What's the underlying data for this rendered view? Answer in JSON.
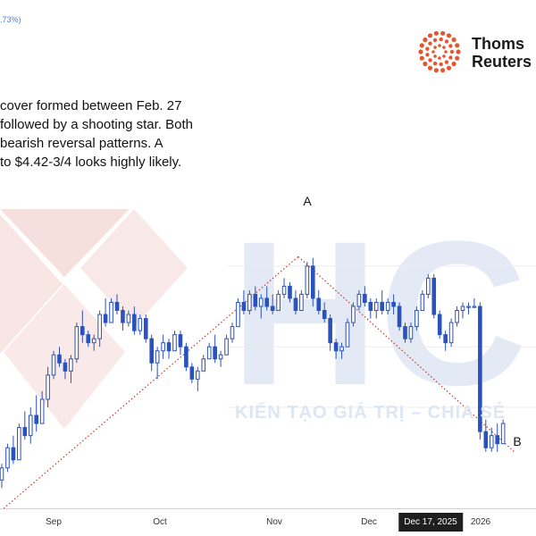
{
  "header_note": ".73%)",
  "annotation_lines": [
    "cover formed between Feb. 27",
    "followed by a shooting star. Both",
    "bearish reversal patterns. A",
    "to $4.42-3/4 looks highly likely."
  ],
  "logo": {
    "line1": "Thoms",
    "line2": "Reuters",
    "color": "#e4572e"
  },
  "watermark": {
    "letters": "HC",
    "tagline": "KIẾN TẠO GIÁ TRỊ – CHIA SẺ",
    "letter_color": "#e3eaf5",
    "arrow_color": "#f3d6d3"
  },
  "colors": {
    "candle": "#2a52be",
    "trend": "#c0392b"
  },
  "chart_data": {
    "type": "candlestick",
    "x_axis_labels": [
      "Sep",
      "Oct",
      "Nov",
      "Dec",
      "Dec 17, 2025",
      "2026"
    ],
    "highlighted_label": "Dec 17, 2025",
    "points": [
      {
        "label": "A"
      },
      {
        "label": "B"
      }
    ],
    "candles": [
      [
        4.52,
        4.56,
        4.5,
        4.55
      ],
      [
        4.55,
        4.61,
        4.54,
        4.6
      ],
      [
        4.6,
        4.63,
        4.56,
        4.57
      ],
      [
        4.57,
        4.66,
        4.57,
        4.65
      ],
      [
        4.65,
        4.69,
        4.62,
        4.63
      ],
      [
        4.63,
        4.7,
        4.61,
        4.68
      ],
      [
        4.68,
        4.73,
        4.64,
        4.66
      ],
      [
        4.66,
        4.74,
        4.66,
        4.72
      ],
      [
        4.72,
        4.8,
        4.7,
        4.78
      ],
      [
        4.78,
        4.84,
        4.77,
        4.83
      ],
      [
        4.83,
        4.85,
        4.8,
        4.81
      ],
      [
        4.81,
        4.82,
        4.77,
        4.79
      ],
      [
        4.79,
        4.83,
        4.76,
        4.82
      ],
      [
        4.82,
        4.91,
        4.81,
        4.9
      ],
      [
        4.9,
        4.94,
        4.86,
        4.88
      ],
      [
        4.88,
        4.89,
        4.85,
        4.86
      ],
      [
        4.86,
        4.88,
        4.84,
        4.87
      ],
      [
        4.87,
        4.94,
        4.85,
        4.93
      ],
      [
        4.93,
        4.97,
        4.9,
        4.91
      ],
      [
        4.91,
        4.97,
        4.91,
        4.96
      ],
      [
        4.96,
        4.98,
        4.93,
        4.94
      ],
      [
        4.94,
        4.95,
        4.89,
        4.91
      ],
      [
        4.91,
        4.94,
        4.9,
        4.93
      ],
      [
        4.93,
        4.95,
        4.88,
        4.89
      ],
      [
        4.89,
        4.93,
        4.88,
        4.92
      ],
      [
        4.92,
        4.93,
        4.86,
        4.87
      ],
      [
        4.87,
        4.88,
        4.79,
        4.81
      ],
      [
        4.81,
        4.85,
        4.77,
        4.84
      ],
      [
        4.84,
        4.88,
        4.82,
        4.86
      ],
      [
        4.86,
        4.87,
        4.82,
        4.84
      ],
      [
        4.84,
        4.89,
        4.84,
        4.88
      ],
      [
        4.88,
        4.89,
        4.83,
        4.85
      ],
      [
        4.85,
        4.86,
        4.79,
        4.8
      ],
      [
        4.8,
        4.81,
        4.76,
        4.77
      ],
      [
        4.77,
        4.8,
        4.74,
        4.79
      ],
      [
        4.79,
        4.83,
        4.79,
        4.82
      ],
      [
        4.82,
        4.86,
        4.82,
        4.85
      ],
      [
        4.85,
        4.88,
        4.81,
        4.82
      ],
      [
        4.82,
        4.84,
        4.8,
        4.83
      ],
      [
        4.83,
        4.88,
        4.83,
        4.87
      ],
      [
        4.87,
        4.91,
        4.86,
        4.9
      ],
      [
        4.9,
        4.97,
        4.9,
        4.96
      ],
      [
        4.96,
        4.99,
        4.93,
        4.94
      ],
      [
        4.94,
        4.99,
        4.93,
        4.98
      ],
      [
        4.98,
        5.0,
        4.94,
        4.95
      ],
      [
        4.95,
        4.98,
        4.92,
        4.97
      ],
      [
        4.97,
        5.0,
        4.94,
        4.95
      ],
      [
        4.95,
        4.98,
        4.93,
        4.94
      ],
      [
        4.94,
        4.99,
        4.94,
        4.98
      ],
      [
        4.98,
        5.02,
        4.97,
        5.0
      ],
      [
        5.0,
        5.01,
        4.96,
        4.97
      ],
      [
        4.97,
        4.99,
        4.93,
        4.94
      ],
      [
        4.94,
        4.99,
        4.94,
        4.98
      ],
      [
        4.98,
        5.06,
        4.97,
        5.05
      ],
      [
        5.05,
        5.07,
        4.95,
        4.97
      ],
      [
        4.97,
        4.99,
        4.93,
        4.94
      ],
      [
        4.94,
        4.96,
        4.91,
        4.92
      ],
      [
        4.92,
        4.93,
        4.84,
        4.86
      ],
      [
        4.86,
        4.87,
        4.82,
        4.84
      ],
      [
        4.84,
        4.86,
        4.82,
        4.85
      ],
      [
        4.85,
        4.92,
        4.85,
        4.91
      ],
      [
        4.91,
        4.96,
        4.9,
        4.95
      ],
      [
        4.95,
        4.99,
        4.94,
        4.98
      ],
      [
        4.98,
        5.0,
        4.95,
        4.96
      ],
      [
        4.96,
        4.97,
        4.92,
        4.94
      ],
      [
        4.94,
        4.97,
        4.92,
        4.96
      ],
      [
        4.96,
        4.99,
        4.93,
        4.94
      ],
      [
        4.94,
        4.97,
        4.93,
        4.96
      ],
      [
        4.96,
        4.98,
        4.93,
        4.95
      ],
      [
        4.95,
        4.96,
        4.89,
        4.9
      ],
      [
        4.9,
        4.91,
        4.86,
        4.87
      ],
      [
        4.87,
        4.91,
        4.86,
        4.9
      ],
      [
        4.9,
        4.95,
        4.89,
        4.94
      ],
      [
        4.94,
        4.99,
        4.94,
        4.98
      ],
      [
        4.98,
        5.03,
        4.97,
        5.02
      ],
      [
        5.02,
        5.03,
        4.92,
        4.93
      ],
      [
        4.93,
        4.94,
        4.87,
        4.88
      ],
      [
        4.88,
        4.89,
        4.84,
        4.86
      ],
      [
        4.86,
        4.92,
        4.85,
        4.91
      ],
      [
        4.91,
        4.95,
        4.9,
        4.94
      ],
      [
        4.94,
        4.96,
        4.92,
        4.95
      ],
      [
        4.95,
        4.96,
        4.93,
        4.95
      ],
      [
        4.95,
        4.97,
        4.95,
        4.95
      ],
      [
        4.95,
        4.96,
        4.62,
        4.64
      ],
      [
        4.64,
        4.67,
        4.59,
        4.6
      ],
      [
        4.6,
        4.65,
        4.59,
        4.63
      ],
      [
        4.63,
        4.66,
        4.59,
        4.61
      ],
      [
        4.61,
        4.67,
        4.61,
        4.66
      ]
    ],
    "trendline_anchor_candle_indices": [
      0,
      53,
      86
    ],
    "y_range": [
      4.45,
      5.2
    ]
  }
}
